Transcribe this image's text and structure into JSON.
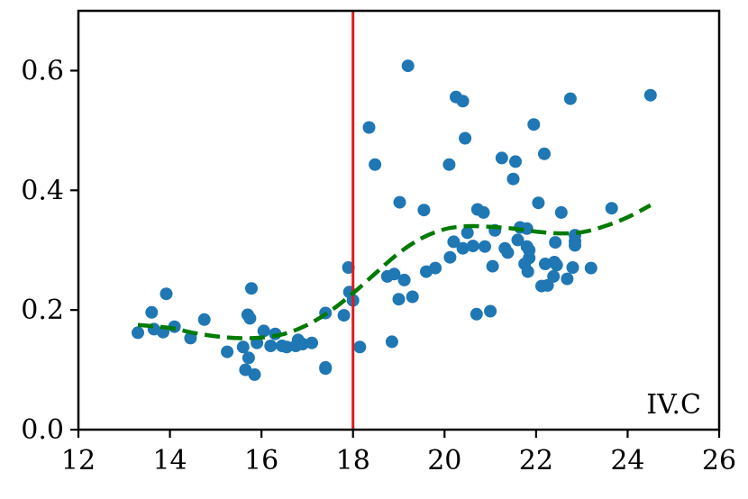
{
  "colors": {
    "points": "#1f77b4",
    "trend": "#007a00",
    "threshold": "#e31a1c",
    "axis": "#000000"
  },
  "chart_data": {
    "type": "scatter",
    "title": "",
    "xlabel": "",
    "ylabel": "",
    "xlim": [
      12,
      26
    ],
    "ylim": [
      0.0,
      0.7
    ],
    "grid": false,
    "legend": "none",
    "x_ticks": [
      "12",
      "14",
      "16",
      "18",
      "20",
      "22",
      "24",
      "26"
    ],
    "y_ticks": [
      "0.0",
      "0.2",
      "0.4",
      "0.6"
    ],
    "x_tick_values": [
      12,
      14,
      16,
      18,
      20,
      22,
      24,
      26
    ],
    "y_tick_values": [
      0.0,
      0.2,
      0.4,
      0.6
    ],
    "vertical_line_x": 18,
    "annotation": "IV.C",
    "points": [
      [
        13.3,
        0.162
      ],
      [
        13.6,
        0.196
      ],
      [
        13.65,
        0.168
      ],
      [
        13.85,
        0.163
      ],
      [
        13.92,
        0.227
      ],
      [
        14.1,
        0.172
      ],
      [
        14.45,
        0.153
      ],
      [
        14.75,
        0.184
      ],
      [
        15.25,
        0.13
      ],
      [
        15.6,
        0.138
      ],
      [
        15.65,
        0.1
      ],
      [
        15.7,
        0.192
      ],
      [
        15.72,
        0.12
      ],
      [
        15.75,
        0.186
      ],
      [
        15.78,
        0.236
      ],
      [
        15.85,
        0.092
      ],
      [
        15.9,
        0.145
      ],
      [
        16.05,
        0.165
      ],
      [
        16.2,
        0.14
      ],
      [
        16.3,
        0.16
      ],
      [
        16.45,
        0.14
      ],
      [
        16.55,
        0.138
      ],
      [
        16.75,
        0.14
      ],
      [
        16.8,
        0.15
      ],
      [
        16.9,
        0.143
      ],
      [
        17.1,
        0.145
      ],
      [
        17.4,
        0.104
      ],
      [
        17.4,
        0.102
      ],
      [
        17.4,
        0.195
      ],
      [
        17.8,
        0.191
      ],
      [
        17.9,
        0.271
      ],
      [
        17.92,
        0.23
      ],
      [
        18.0,
        0.216
      ],
      [
        18.15,
        0.138
      ],
      [
        18.35,
        0.505
      ],
      [
        18.48,
        0.443
      ],
      [
        18.75,
        0.256
      ],
      [
        18.85,
        0.147
      ],
      [
        18.9,
        0.26
      ],
      [
        19.0,
        0.218
      ],
      [
        19.02,
        0.38
      ],
      [
        19.12,
        0.25
      ],
      [
        19.2,
        0.608
      ],
      [
        19.3,
        0.222
      ],
      [
        19.55,
        0.367
      ],
      [
        19.6,
        0.264
      ],
      [
        19.8,
        0.27
      ],
      [
        20.1,
        0.443
      ],
      [
        20.12,
        0.288
      ],
      [
        20.2,
        0.314
      ],
      [
        20.25,
        0.556
      ],
      [
        20.4,
        0.303
      ],
      [
        20.4,
        0.549
      ],
      [
        20.45,
        0.487
      ],
      [
        20.5,
        0.329
      ],
      [
        20.62,
        0.307
      ],
      [
        20.7,
        0.193
      ],
      [
        20.72,
        0.368
      ],
      [
        20.85,
        0.363
      ],
      [
        20.88,
        0.306
      ],
      [
        21.0,
        0.198
      ],
      [
        21.05,
        0.273
      ],
      [
        21.1,
        0.333
      ],
      [
        21.25,
        0.454
      ],
      [
        21.32,
        0.303
      ],
      [
        21.38,
        0.296
      ],
      [
        21.5,
        0.419
      ],
      [
        21.55,
        0.448
      ],
      [
        21.6,
        0.317
      ],
      [
        21.65,
        0.338
      ],
      [
        21.75,
        0.277
      ],
      [
        21.8,
        0.336
      ],
      [
        21.8,
        0.306
      ],
      [
        21.82,
        0.264
      ],
      [
        21.85,
        0.287
      ],
      [
        21.85,
        0.3
      ],
      [
        21.95,
        0.51
      ],
      [
        22.05,
        0.379
      ],
      [
        22.12,
        0.24
      ],
      [
        22.18,
        0.461
      ],
      [
        22.2,
        0.277
      ],
      [
        22.25,
        0.241
      ],
      [
        22.38,
        0.256
      ],
      [
        22.4,
        0.28
      ],
      [
        22.42,
        0.313
      ],
      [
        22.45,
        0.275
      ],
      [
        22.55,
        0.363
      ],
      [
        22.68,
        0.252
      ],
      [
        22.75,
        0.553
      ],
      [
        22.8,
        0.271
      ],
      [
        22.85,
        0.325
      ],
      [
        22.85,
        0.315
      ],
      [
        22.85,
        0.308
      ],
      [
        23.2,
        0.27
      ],
      [
        23.65,
        0.37
      ],
      [
        24.5,
        0.559
      ]
    ],
    "trend_line": [
      [
        13.3,
        0.175
      ],
      [
        14.0,
        0.17
      ],
      [
        14.5,
        0.162
      ],
      [
        15.0,
        0.156
      ],
      [
        15.5,
        0.153
      ],
      [
        16.0,
        0.154
      ],
      [
        16.5,
        0.16
      ],
      [
        17.0,
        0.175
      ],
      [
        17.5,
        0.198
      ],
      [
        18.0,
        0.228
      ],
      [
        18.5,
        0.262
      ],
      [
        19.0,
        0.295
      ],
      [
        19.5,
        0.32
      ],
      [
        20.0,
        0.335
      ],
      [
        20.5,
        0.34
      ],
      [
        21.0,
        0.339
      ],
      [
        21.5,
        0.336
      ],
      [
        22.0,
        0.331
      ],
      [
        22.5,
        0.328
      ],
      [
        23.0,
        0.33
      ],
      [
        23.5,
        0.34
      ],
      [
        24.0,
        0.355
      ],
      [
        24.5,
        0.375
      ]
    ]
  }
}
